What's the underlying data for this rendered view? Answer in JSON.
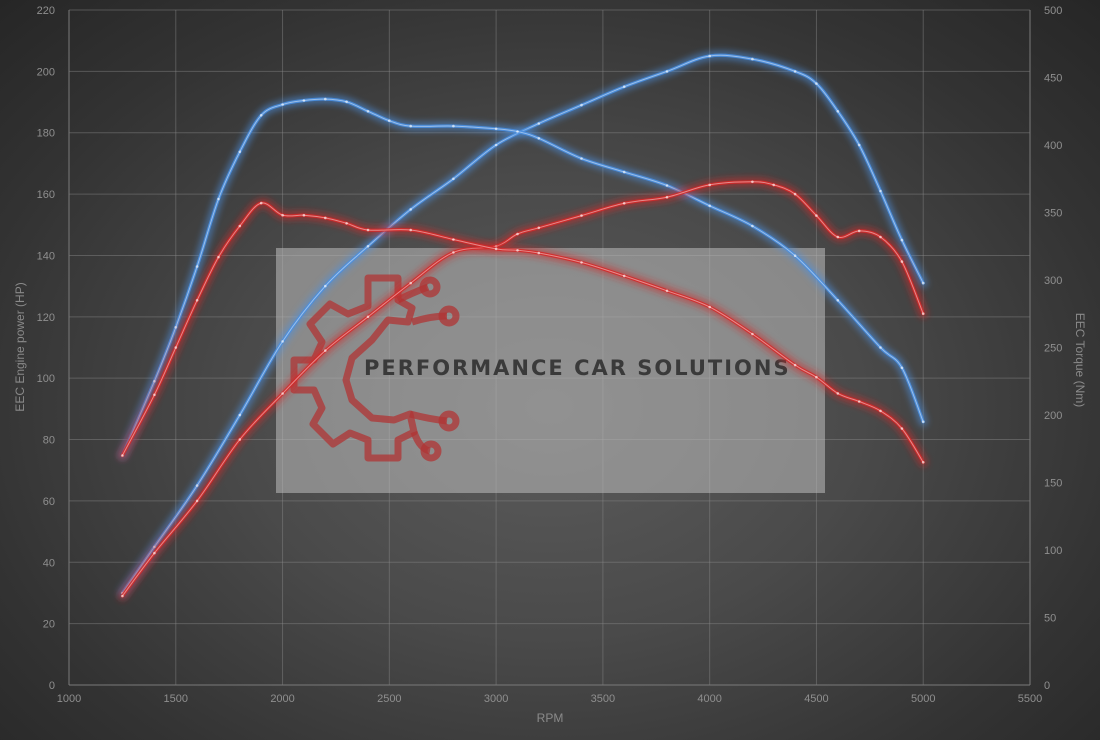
{
  "chart_data": {
    "type": "line",
    "title": "",
    "xlabel": "RPM",
    "ylabel_left": "EEC Engine power (HP)",
    "ylabel_right": "EEC Torque (Nm)",
    "xlim": [
      1000,
      5500
    ],
    "ylim_left": [
      0,
      220
    ],
    "ylim_right": [
      0,
      500
    ],
    "x_ticks": [
      1000,
      1500,
      2000,
      2500,
      3000,
      3500,
      4000,
      4500,
      5000,
      5500
    ],
    "y_left_ticks": [
      0,
      20,
      40,
      60,
      80,
      100,
      120,
      140,
      160,
      180,
      200,
      220
    ],
    "y_right_ticks": [
      0,
      50,
      100,
      150,
      200,
      250,
      300,
      350,
      400,
      450,
      500
    ],
    "grid": true,
    "legend": "none",
    "series": [
      {
        "axis": "left",
        "color": "#4a8fe0",
        "x": [
          1250,
          1400,
          1600,
          1800,
          2000,
          2200,
          2400,
          2600,
          2800,
          3000,
          3200,
          3400,
          3600,
          3800,
          4000,
          4200,
          4400,
          4500,
          4600,
          4700,
          4800,
          4900,
          5000
        ],
        "values": [
          30,
          45,
          65,
          88,
          112,
          130,
          143,
          155,
          165,
          176,
          183,
          189,
          195,
          200,
          205,
          204,
          200,
          196,
          187,
          176,
          161,
          145,
          131
        ]
      },
      {
        "axis": "right",
        "color": "#4a8fe0",
        "x": [
          1250,
          1400,
          1500,
          1600,
          1700,
          1800,
          1900,
          2000,
          2100,
          2200,
          2300,
          2400,
          2500,
          2600,
          2800,
          3000,
          3100,
          3200,
          3400,
          3600,
          3800,
          4000,
          4200,
          4400,
          4600,
          4800,
          4900,
          5000
        ],
        "values": [
          170,
          225,
          265,
          310,
          360,
          395,
          422,
          430,
          433,
          434,
          432,
          425,
          418,
          414,
          414,
          412,
          410,
          405,
          390,
          380,
          370,
          355,
          340,
          318,
          285,
          250,
          235,
          195
        ]
      },
      {
        "axis": "left",
        "color": "#d42a2a",
        "x": [
          1250,
          1400,
          1600,
          1800,
          2000,
          2200,
          2400,
          2600,
          2800,
          3000,
          3100,
          3200,
          3400,
          3600,
          3800,
          4000,
          4200,
          4300,
          4400,
          4500,
          4600,
          4700,
          4800,
          4900,
          5000
        ],
        "values": [
          29,
          43,
          60,
          80,
          95,
          109,
          120,
          131,
          141,
          143,
          147,
          149,
          153,
          157,
          159,
          163,
          164,
          163,
          160,
          153,
          146,
          148,
          146,
          138,
          121
        ]
      },
      {
        "axis": "right",
        "color": "#d42a2a",
        "x": [
          1250,
          1400,
          1500,
          1600,
          1700,
          1800,
          1900,
          2000,
          2100,
          2200,
          2300,
          2400,
          2600,
          2800,
          3000,
          3100,
          3200,
          3400,
          3600,
          3800,
          4000,
          4200,
          4400,
          4500,
          4600,
          4700,
          4800,
          4900,
          5000
        ],
        "values": [
          170,
          215,
          250,
          285,
          317,
          340,
          357,
          348,
          348,
          346,
          342,
          337,
          337,
          330,
          323,
          322,
          320,
          313,
          303,
          292,
          280,
          260,
          237,
          228,
          216,
          210,
          203,
          190,
          165
        ]
      }
    ]
  },
  "watermark": {
    "text": "PERFORMANCE CAR SOLUTIONS"
  }
}
